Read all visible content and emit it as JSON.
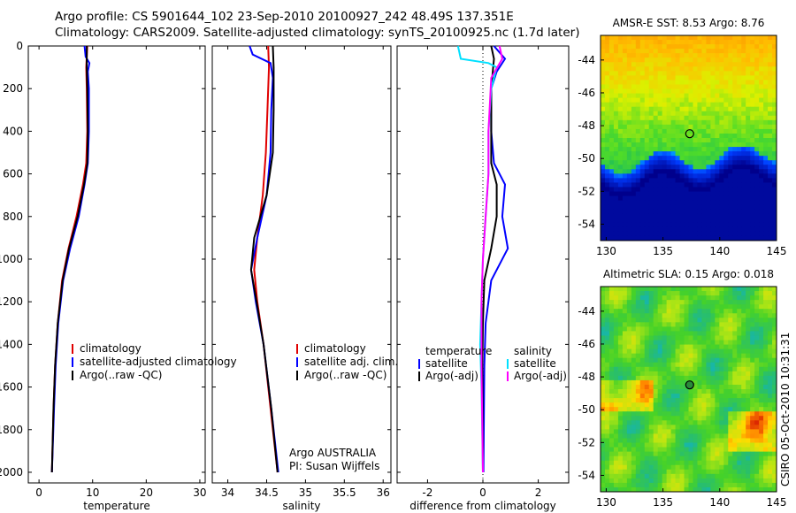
{
  "title_line1": "Argo profile: CS 5901644_102 23-Sep-2010 20100927_242 48.49S 137.351E",
  "title_line2": "Climatology: CARS2009. Satellite-adjusted climatology: synTS_20100925.nc (1.7d later)",
  "watermark": "CSIRO 05-Oct-2010 10:31:31",
  "credit_line1": "Argo AUSTRALIA",
  "credit_line2": "PI: Susan Wijffels",
  "colors": {
    "climatology": "#e00000",
    "satellite": "#0000ff",
    "argo": "#000000",
    "cyan": "#00e0ff",
    "magenta": "#ff00ff"
  },
  "chart_data": [
    {
      "type": "line",
      "xlabel": "temperature",
      "ylim": [
        0,
        2050
      ],
      "y_reversed": true,
      "xlim": [
        -2,
        31
      ],
      "xticks": [
        "0",
        "10",
        "20",
        "30"
      ],
      "yticks": [
        "0",
        "200",
        "400",
        "600",
        "800",
        "1000",
        "1200",
        "1400",
        "1600",
        "1800",
        "2000"
      ],
      "legend": [
        "climatology",
        "satellite-adjusted climatology",
        "Argo(..raw -QC)"
      ],
      "series": [
        {
          "name": "climatology",
          "color": "#e00000",
          "points": [
            [
              9.0,
              0
            ],
            [
              8.8,
              100
            ],
            [
              8.9,
              200
            ],
            [
              9.0,
              400
            ],
            [
              8.8,
              550
            ],
            [
              8.2,
              650
            ],
            [
              7.0,
              800
            ],
            [
              5.5,
              950
            ],
            [
              4.3,
              1100
            ],
            [
              3.5,
              1300
            ],
            [
              3.0,
              1500
            ],
            [
              2.7,
              1700
            ],
            [
              2.4,
              2000
            ]
          ]
        },
        {
          "name": "satellite-adjusted climatology",
          "color": "#0000ff",
          "points": [
            [
              8.5,
              0
            ],
            [
              8.7,
              50
            ],
            [
              9.4,
              80
            ],
            [
              9.1,
              120
            ],
            [
              9.3,
              200
            ],
            [
              9.3,
              400
            ],
            [
              9.1,
              550
            ],
            [
              8.5,
              650
            ],
            [
              7.4,
              800
            ],
            [
              5.8,
              950
            ],
            [
              4.5,
              1100
            ],
            [
              3.6,
              1300
            ],
            [
              3.1,
              1500
            ],
            [
              2.8,
              1700
            ],
            [
              2.4,
              2000
            ]
          ]
        },
        {
          "name": "Argo(..raw -QC)",
          "color": "#000000",
          "points": [
            [
              8.9,
              0
            ],
            [
              8.9,
              100
            ],
            [
              9.0,
              200
            ],
            [
              9.1,
              400
            ],
            [
              9.0,
              550
            ],
            [
              8.4,
              650
            ],
            [
              7.2,
              800
            ],
            [
              5.6,
              950
            ],
            [
              4.4,
              1100
            ],
            [
              3.5,
              1300
            ],
            [
              3.0,
              1500
            ],
            [
              2.7,
              1700
            ],
            [
              2.4,
              2000
            ]
          ]
        }
      ]
    },
    {
      "type": "line",
      "xlabel": "salinity",
      "ylim": [
        0,
        2050
      ],
      "y_reversed": true,
      "xlim": [
        33.8,
        36.1
      ],
      "xticks": [
        "34",
        "34.5",
        "35",
        "35.5",
        "36"
      ],
      "legend": [
        "climatology",
        "satellite adj. clim.",
        "Argo(..raw -QC)"
      ],
      "series": [
        {
          "name": "climatology",
          "color": "#e00000",
          "points": [
            [
              34.52,
              0
            ],
            [
              34.53,
              100
            ],
            [
              34.51,
              300
            ],
            [
              34.49,
              500
            ],
            [
              34.45,
              700
            ],
            [
              34.38,
              900
            ],
            [
              34.34,
              1050
            ],
            [
              34.38,
              1200
            ],
            [
              34.46,
              1400
            ],
            [
              34.55,
              1700
            ],
            [
              34.64,
              2000
            ]
          ]
        },
        {
          "name": "satellite adj. clim.",
          "color": "#0000ff",
          "points": [
            [
              34.28,
              0
            ],
            [
              34.32,
              40
            ],
            [
              34.55,
              80
            ],
            [
              34.58,
              150
            ],
            [
              34.56,
              300
            ],
            [
              34.55,
              500
            ],
            [
              34.5,
              700
            ],
            [
              34.38,
              900
            ],
            [
              34.3,
              1050
            ],
            [
              34.36,
              1200
            ],
            [
              34.46,
              1400
            ],
            [
              34.56,
              1700
            ],
            [
              34.65,
              2000
            ]
          ]
        },
        {
          "name": "Argo(..raw -QC)",
          "color": "#000000",
          "points": [
            [
              34.58,
              0
            ],
            [
              34.59,
              100
            ],
            [
              34.59,
              300
            ],
            [
              34.58,
              500
            ],
            [
              34.5,
              700
            ],
            [
              34.34,
              900
            ],
            [
              34.3,
              1050
            ],
            [
              34.37,
              1200
            ],
            [
              34.46,
              1400
            ],
            [
              34.56,
              1700
            ],
            [
              34.64,
              2000
            ]
          ]
        }
      ]
    },
    {
      "type": "line",
      "xlabel": "difference from climatology",
      "ylim": [
        0,
        2050
      ],
      "y_reversed": true,
      "xlim": [
        -3.1,
        3.1
      ],
      "xticks": [
        "-2",
        "0",
        "2"
      ],
      "legend_temperature": [
        "temperature",
        "satellite",
        "Argo(-adj)"
      ],
      "legend_salinity": [
        "salinity",
        "satellite",
        "Argo(-adj)"
      ],
      "series": [
        {
          "name": "temperature satellite",
          "color": "#0000ff",
          "points": [
            [
              0.4,
              0
            ],
            [
              0.8,
              60
            ],
            [
              0.5,
              120
            ],
            [
              0.3,
              200
            ],
            [
              0.3,
              400
            ],
            [
              0.4,
              550
            ],
            [
              0.8,
              650
            ],
            [
              0.7,
              800
            ],
            [
              0.9,
              950
            ],
            [
              0.3,
              1100
            ],
            [
              0.1,
              1300
            ],
            [
              0.05,
              1500
            ],
            [
              0.02,
              2000
            ]
          ]
        },
        {
          "name": "temperature Argo(-adj)",
          "color": "#000000",
          "points": [
            [
              0.3,
              0
            ],
            [
              0.4,
              60
            ],
            [
              0.3,
              200
            ],
            [
              0.3,
              400
            ],
            [
              0.3,
              550
            ],
            [
              0.5,
              650
            ],
            [
              0.5,
              800
            ],
            [
              0.3,
              950
            ],
            [
              0.05,
              1100
            ],
            [
              0.0,
              1300
            ],
            [
              -0.02,
              1500
            ],
            [
              0.0,
              2000
            ]
          ]
        },
        {
          "name": "salinity satellite",
          "color": "#00e0ff",
          "points": [
            [
              -0.9,
              0
            ],
            [
              -0.8,
              60
            ],
            [
              0.2,
              80
            ],
            [
              0.5,
              100
            ],
            [
              0.3,
              200
            ],
            [
              0.2,
              400
            ],
            [
              0.2,
              600
            ],
            [
              0.1,
              800
            ],
            [
              0.0,
              1000
            ],
            [
              -0.05,
              1200
            ],
            [
              -0.1,
              1400
            ],
            [
              -0.05,
              1600
            ],
            [
              0.0,
              2000
            ]
          ]
        },
        {
          "name": "salinity Argo(-adj)",
          "color": "#ff00ff",
          "points": [
            [
              0.6,
              0
            ],
            [
              0.7,
              60
            ],
            [
              0.3,
              150
            ],
            [
              0.2,
              400
            ],
            [
              0.2,
              600
            ],
            [
              0.1,
              800
            ],
            [
              0.0,
              1000
            ],
            [
              -0.05,
              1200
            ],
            [
              -0.05,
              1500
            ],
            [
              0.0,
              2000
            ]
          ]
        }
      ]
    },
    {
      "type": "heatmap",
      "title": "AMSR-E SST: 8.53  Argo: 8.76",
      "xlim": [
        129.5,
        145
      ],
      "ylim": [
        -55,
        -42.5
      ],
      "xticks": [
        "130",
        "135",
        "140",
        "145"
      ],
      "yticks": [
        "-44",
        "-46",
        "-48",
        "-50",
        "-52",
        "-54"
      ],
      "marker": [
        137.351,
        -48.49
      ]
    },
    {
      "type": "heatmap",
      "title": "Altimetric SLA: 0.15  Argo: 0.018",
      "xlim": [
        129.5,
        145
      ],
      "ylim": [
        -55,
        -42.5
      ],
      "xticks": [
        "130",
        "135",
        "140",
        "145"
      ],
      "yticks": [
        "-44",
        "-46",
        "-48",
        "-50",
        "-52",
        "-54"
      ],
      "marker": [
        137.351,
        -48.49
      ]
    }
  ]
}
